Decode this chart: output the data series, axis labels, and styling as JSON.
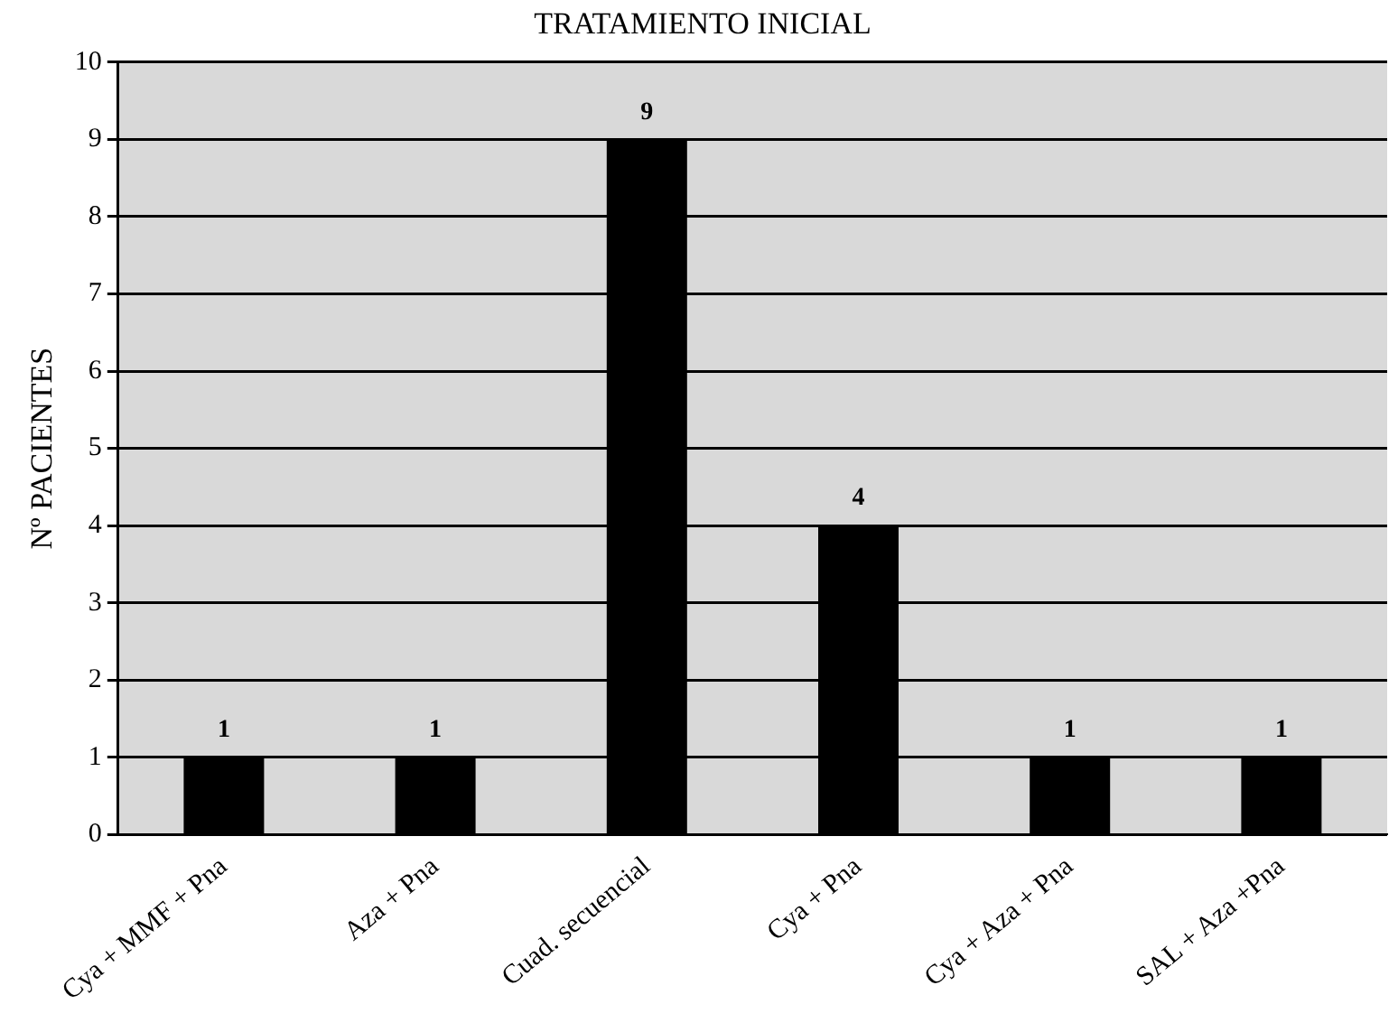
{
  "chart_data": {
    "type": "bar",
    "title": "TRATAMIENTO INICIAL",
    "ylabel": "Nº PACIENTES",
    "categories": [
      "Cya + MMF + Pna",
      "Aza + Pna",
      "Cuad. secuencial",
      "Cya + Pna",
      "Cya + Aza + Pna",
      "SAL + Aza +Pna"
    ],
    "values": [
      1,
      1,
      9,
      4,
      1,
      1
    ],
    "color": "#000000",
    "ylim": [
      0,
      10
    ],
    "yticks": [
      0,
      1,
      2,
      3,
      4,
      5,
      6,
      7,
      8,
      9,
      10
    ],
    "grid": "y",
    "data_labels": true,
    "legend": false
  }
}
